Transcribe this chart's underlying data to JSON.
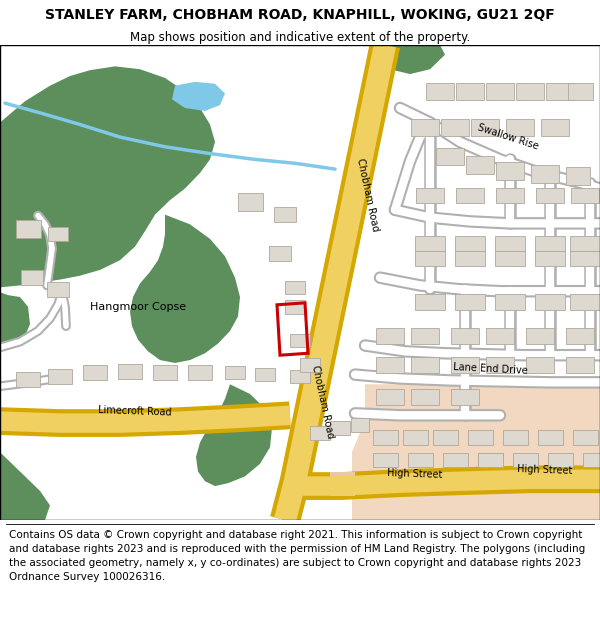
{
  "title": "STANLEY FARM, CHOBHAM ROAD, KNAPHILL, WOKING, GU21 2QF",
  "subtitle": "Map shows position and indicative extent of the property.",
  "footer": "Contains OS data © Crown copyright and database right 2021. This information is subject to Crown copyright and database rights 2023 and is reproduced with the permission of HM Land Registry. The polygons (including the associated geometry, namely x, y co-ordinates) are subject to Crown copyright and database rights 2023 Ordnance Survey 100026316.",
  "green_color": "#5c8f5c",
  "road_yellow_fill": "#f0d060",
  "road_yellow_edge": "#d4a800",
  "road_gray_edge": "#b0b0b0",
  "road_white": "#ffffff",
  "building_fill": "#ddd8d0",
  "building_edge": "#b0a89a",
  "red_color": "#cc0000",
  "water_color": "#80c8e8",
  "peach_color": "#f2d8c0",
  "title_fontsize": 10,
  "subtitle_fontsize": 8.5,
  "footer_fontsize": 7.5
}
